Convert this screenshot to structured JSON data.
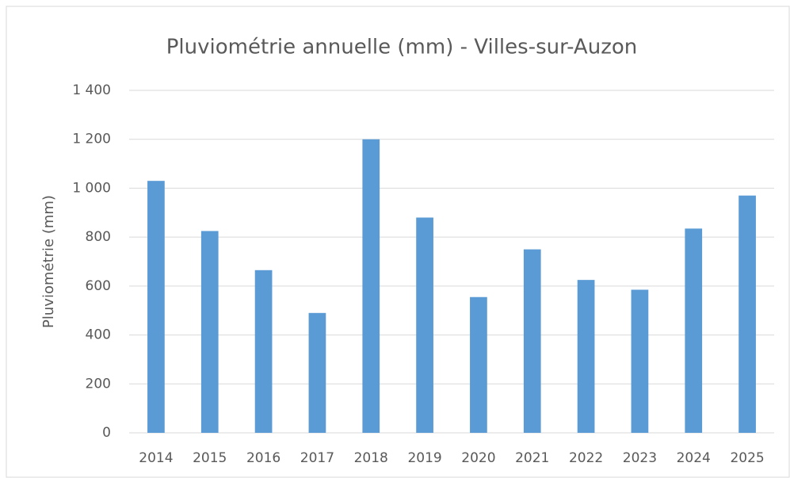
{
  "chart_data": {
    "type": "bar",
    "title": "Pluviométrie annuelle (mm) - Villes-sur-Auzon",
    "ylabel": "Pluviométrie (mm)",
    "categories": [
      "2014",
      "2015",
      "2016",
      "2017",
      "2018",
      "2019",
      "2020",
      "2021",
      "2022",
      "2023",
      "2024",
      "2025"
    ],
    "values": [
      1030,
      825,
      665,
      490,
      1200,
      880,
      555,
      750,
      625,
      585,
      835,
      970
    ],
    "color": "#5b9bd5",
    "ylim": [
      0,
      1400
    ],
    "yticks": [
      0,
      200,
      400,
      600,
      800,
      {
        "value": 1000,
        "label": "1 000"
      },
      {
        "value": 1200,
        "label": "1 200"
      },
      {
        "value": 1400,
        "label": "1 400"
      }
    ],
    "grid": true
  }
}
